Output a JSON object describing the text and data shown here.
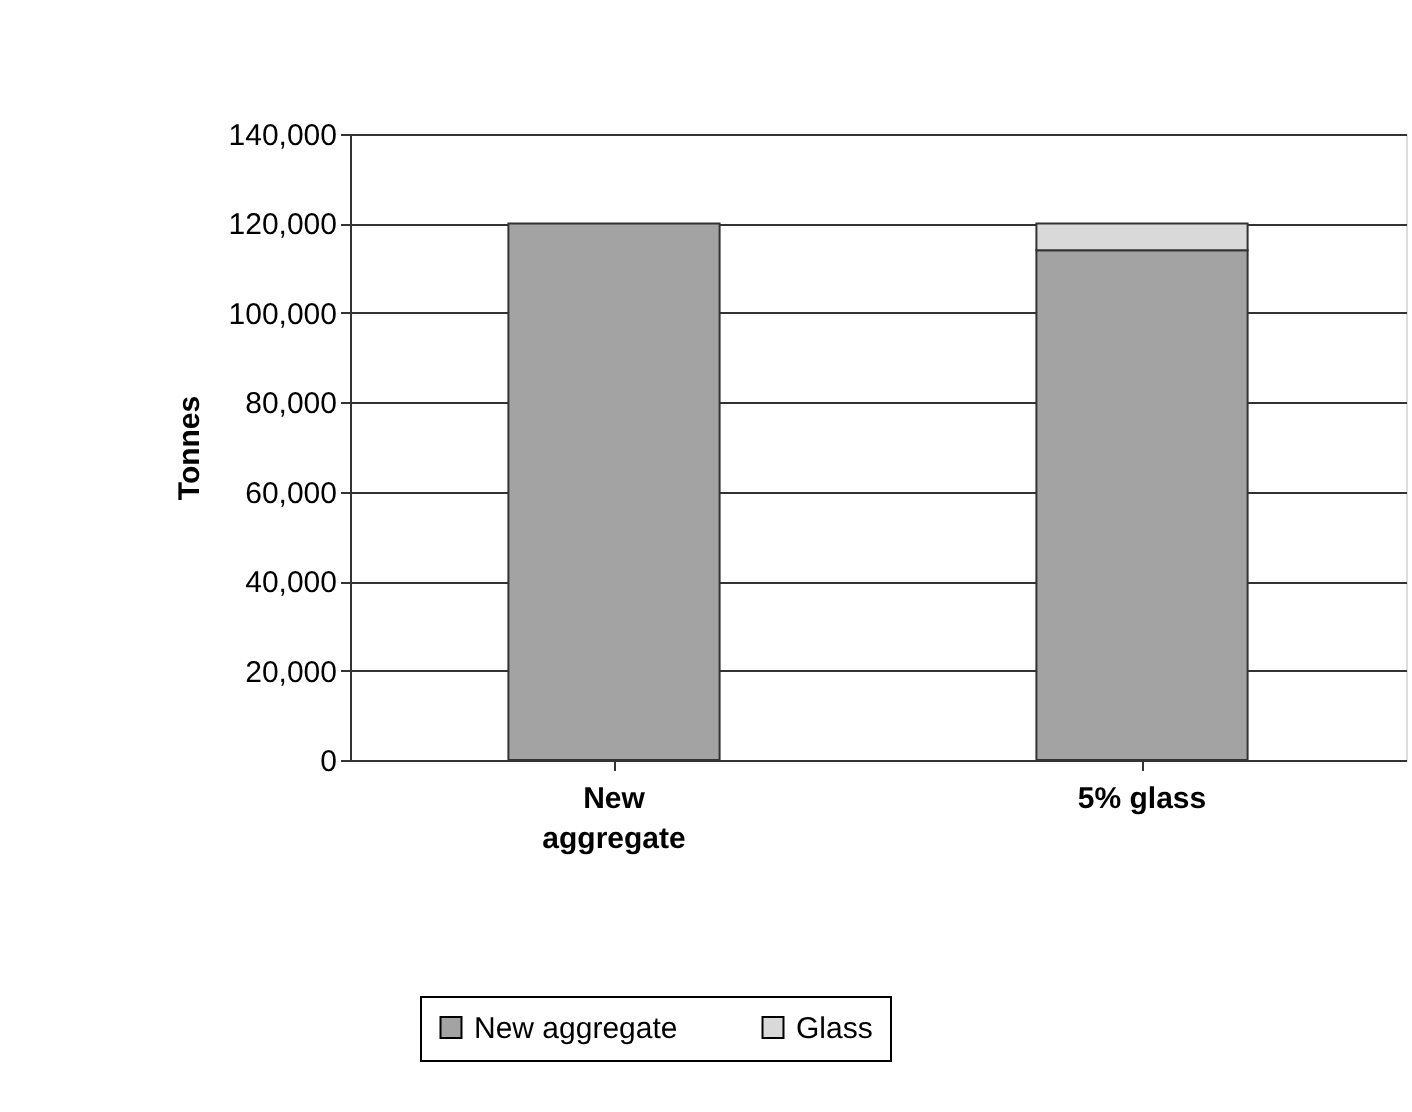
{
  "chart_data": {
    "type": "bar",
    "stacked": true,
    "ylabel": "Tonnes",
    "categories": [
      "New aggregate",
      "5% glass"
    ],
    "series": [
      {
        "name": "New aggregate",
        "color": "#a3a3a3",
        "values": [
          120000,
          114000
        ]
      },
      {
        "name": "Glass",
        "color": "#d9d9d9",
        "values": [
          null,
          6000
        ]
      }
    ],
    "ylim": [
      0,
      140000
    ],
    "yticks": [
      {
        "value": 0,
        "label": "0"
      },
      {
        "value": 20000,
        "label": "20,000"
      },
      {
        "value": 40000,
        "label": "40,000"
      },
      {
        "value": 60000,
        "label": "60,000"
      },
      {
        "value": 80000,
        "label": "80,000"
      },
      {
        "value": 100000,
        "label": "100,000"
      },
      {
        "value": 120000,
        "label": "120,000"
      },
      {
        "value": 140000,
        "label": "140,000"
      }
    ],
    "grid": "y",
    "legend": "bottom"
  }
}
